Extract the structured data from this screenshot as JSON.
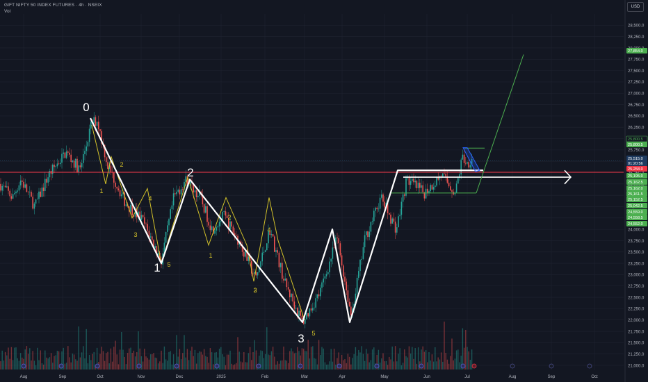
{
  "header": {
    "title": "GIFT NIFTY 50 INDEX FUTURES · 4h · NSEIX",
    "volume_label": "Vol",
    "currency": "USD"
  },
  "colors": {
    "background": "#131722",
    "grid": "#1f2330",
    "axis_text": "#b2b5be",
    "candle_up": "#26a69a",
    "candle_down": "#ef5350",
    "wave_white": "#ffffff",
    "wave_yellow": "#d4c32a",
    "projection_green": "#4caf50",
    "resistance_red": "#f23645",
    "channel_blue": "#2962ff",
    "price_tag_green": "#4caf50"
  },
  "chart_data": {
    "type": "candlestick",
    "title": "GIFT NIFTY 50 INDEX FUTURES · 4h · NSEIX",
    "x_axis": {
      "ticks": [
        "Aug",
        "Sep",
        "Oct",
        "Nov",
        "Dec",
        "2025",
        "Feb",
        "Mar",
        "Apr",
        "May",
        "Jun",
        "Jul",
        "Aug",
        "Sep",
        "Oct"
      ]
    },
    "y_axis": {
      "range": [
        21000,
        28750
      ],
      "ticks": [
        "28,500.0",
        "28,250.0",
        "28,000.0",
        "27,750.0",
        "27,500.0",
        "27,250.0",
        "27,000.0",
        "26,750.0",
        "26,500.0",
        "26,250.0",
        "26,000.0",
        "25,750.0",
        "25,500.0",
        "25,250.0",
        "25,000.0",
        "24,750.0",
        "24,500.0",
        "24,250.0",
        "24,000.0",
        "23,750.0",
        "23,500.0",
        "23,250.0",
        "23,000.0",
        "22,750.0",
        "22,500.0",
        "22,250.0",
        "22,000.0",
        "21,750.0",
        "21,500.0",
        "21,250.0",
        "21,000.0"
      ]
    },
    "price_tags": [
      {
        "label": "27,854.0",
        "value": 27854,
        "style": "green"
      },
      {
        "label": "25,800.5",
        "value": 25800.5,
        "style": "outline"
      },
      {
        "label": "25,800.5",
        "value": 25800.5,
        "style": "green"
      },
      {
        "label": "25,515.0",
        "value": 25515,
        "style": "blue"
      },
      {
        "label": "01:20:56",
        "value": 25455,
        "style": "blue"
      },
      {
        "label": "25,258.0",
        "value": 25258,
        "style": "red"
      },
      {
        "label": "25,195.0",
        "value": 25195,
        "style": "green"
      },
      {
        "label": "25,162.5",
        "value": 25162.5,
        "style": "green"
      },
      {
        "label": "25,162.0",
        "value": 25162,
        "style": "green"
      },
      {
        "label": "25,161.5",
        "value": 25161.5,
        "style": "green"
      },
      {
        "label": "25,152.5",
        "value": 25152.5,
        "style": "green"
      },
      {
        "label": "25,042.5",
        "value": 25042.5,
        "style": "green"
      },
      {
        "label": "24,559.0",
        "value": 24559,
        "style": "green"
      },
      {
        "label": "24,558.5",
        "value": 24558.5,
        "style": "green"
      },
      {
        "label": "24,552.0",
        "value": 24552,
        "style": "green"
      }
    ],
    "horizontal_lines": [
      {
        "name": "resistance",
        "value": 25258
      }
    ],
    "wave_labels_white": [
      {
        "label": "0",
        "value": 26550
      },
      {
        "label": "1",
        "value": 23100
      },
      {
        "label": "2",
        "value": 25350
      },
      {
        "label": "3",
        "value": 21500
      }
    ],
    "wave_labels_yellow": [
      {
        "label": "1",
        "value": 25000
      },
      {
        "label": "2",
        "value": 25500
      },
      {
        "label": "3",
        "value": 24200
      },
      {
        "label": "4",
        "value": 24800
      },
      {
        "label": "5",
        "value": 23150
      },
      {
        "label": "1",
        "value": 23600
      },
      {
        "label": "2",
        "value": 24600
      },
      {
        "label": "3",
        "value": 23850
      },
      {
        "label": "4",
        "value": 24350
      },
      {
        "label": "2",
        "value": 22800
      },
      {
        "label": "5",
        "value": 21800
      }
    ]
  }
}
